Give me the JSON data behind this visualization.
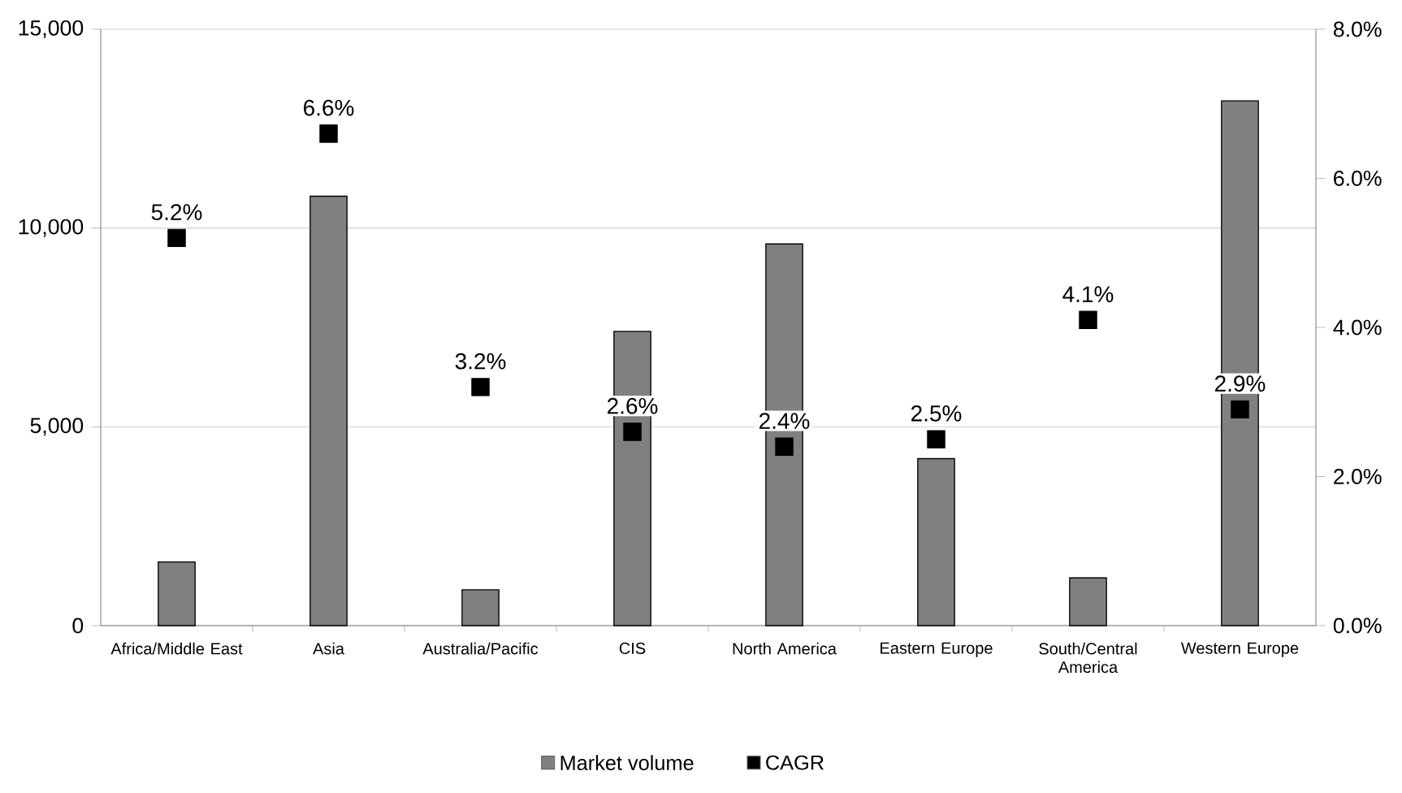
{
  "chart_data": {
    "type": "bar",
    "categories": [
      "Africa/Middle East",
      "Asia",
      "Australia/Pacific",
      "CIS",
      "North America",
      "Eastern Europe",
      "South/Central America",
      "Western Europe"
    ],
    "series": [
      {
        "name": "Market volume",
        "color": "#808080",
        "values": [
          1600,
          10800,
          900,
          7400,
          9600,
          4200,
          1200,
          13200
        ]
      },
      {
        "name": "CAGR",
        "type": "scatter",
        "axis": "y2",
        "color": "#000000",
        "marker": "square",
        "values": [
          5.2,
          6.6,
          3.2,
          2.6,
          2.4,
          2.5,
          4.1,
          2.9
        ],
        "value_labels": [
          "5.2%",
          "6.6%",
          "3.2%",
          "2.6%",
          "2.4%",
          "2.5%",
          "4.1%",
          "2.9%"
        ]
      }
    ],
    "ylim": [
      0,
      15000
    ],
    "yticks": [
      {
        "value": 0,
        "label": "0"
      },
      {
        "value": 5000,
        "label": "5,000"
      },
      {
        "value": 10000,
        "label": "10,000"
      },
      {
        "value": 15000,
        "label": "15,000"
      }
    ],
    "y2lim": [
      0,
      8
    ],
    "y2ticks": [
      {
        "value": 0,
        "label": "0.0%"
      },
      {
        "value": 2,
        "label": "2.0%"
      },
      {
        "value": 4,
        "label": "4.0%"
      },
      {
        "value": 6,
        "label": "6.0%"
      },
      {
        "value": 8,
        "label": "8.0%"
      }
    ],
    "grid": "y",
    "legend": "bottom"
  }
}
